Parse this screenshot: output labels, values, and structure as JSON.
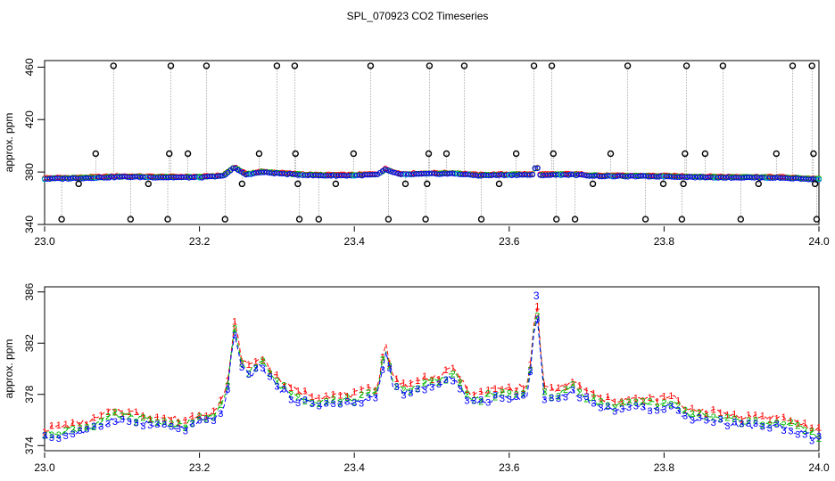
{
  "page_title": "SPL_070923  CO2 Timeseries",
  "chart_data": [
    {
      "type": "scatter",
      "name": "top-panel",
      "title": "SPL_070923  CO2 Timeseries",
      "xlabel": "",
      "ylabel": "approx. ppm",
      "xlim": [
        23.0,
        24.0
      ],
      "ylim": [
        340,
        465
      ],
      "x_ticks": [
        23.0,
        23.2,
        23.4,
        23.6,
        23.8,
        24.0
      ],
      "x_tick_labels": [
        "23.0",
        "23.2",
        "23.4",
        "23.6",
        "23.8",
        "24.0"
      ],
      "y_ticks": [
        340,
        380,
        420,
        460
      ],
      "y_tick_labels": [
        "340",
        "380",
        "420",
        "460"
      ],
      "colors": {
        "series1": "#ff0000",
        "series2": "#00bb00",
        "series3": "#0000ff",
        "series4": "#00cccc",
        "outlier": "#000000",
        "vline": "#808080"
      },
      "series": [
        {
          "name": "1",
          "color": "#ff0000",
          "marker": "circle"
        },
        {
          "name": "2",
          "color": "#00bb00",
          "marker": "circle"
        },
        {
          "name": "3",
          "color": "#0000ff",
          "marker": "circle"
        },
        {
          "name": "4",
          "color": "#00cccc",
          "marker": "circle"
        }
      ],
      "outliers": [
        {
          "x": 23.022,
          "y": 344
        },
        {
          "x": 23.044,
          "y": 371
        },
        {
          "x": 23.066,
          "y": 394
        },
        {
          "x": 23.089,
          "y": 461
        },
        {
          "x": 23.111,
          "y": 344
        },
        {
          "x": 23.134,
          "y": 371
        },
        {
          "x": 23.159,
          "y": 344
        },
        {
          "x": 23.161,
          "y": 394
        },
        {
          "x": 23.163,
          "y": 461
        },
        {
          "x": 23.185,
          "y": 394
        },
        {
          "x": 23.209,
          "y": 461
        },
        {
          "x": 23.233,
          "y": 344
        },
        {
          "x": 23.255,
          "y": 371
        },
        {
          "x": 23.277,
          "y": 394
        },
        {
          "x": 23.3,
          "y": 461
        },
        {
          "x": 23.323,
          "y": 461
        },
        {
          "x": 23.324,
          "y": 394
        },
        {
          "x": 23.327,
          "y": 371
        },
        {
          "x": 23.329,
          "y": 344
        },
        {
          "x": 23.354,
          "y": 344
        },
        {
          "x": 23.376,
          "y": 371
        },
        {
          "x": 23.399,
          "y": 394
        },
        {
          "x": 23.421,
          "y": 461
        },
        {
          "x": 23.444,
          "y": 344
        },
        {
          "x": 23.466,
          "y": 371
        },
        {
          "x": 23.492,
          "y": 344
        },
        {
          "x": 23.494,
          "y": 371
        },
        {
          "x": 23.496,
          "y": 394
        },
        {
          "x": 23.497,
          "y": 461
        },
        {
          "x": 23.519,
          "y": 394
        },
        {
          "x": 23.542,
          "y": 461
        },
        {
          "x": 23.564,
          "y": 344
        },
        {
          "x": 23.587,
          "y": 371
        },
        {
          "x": 23.609,
          "y": 394
        },
        {
          "x": 23.632,
          "y": 461
        },
        {
          "x": 23.655,
          "y": 461
        },
        {
          "x": 23.657,
          "y": 394
        },
        {
          "x": 23.661,
          "y": 344
        },
        {
          "x": 23.685,
          "y": 344
        },
        {
          "x": 23.708,
          "y": 371
        },
        {
          "x": 23.731,
          "y": 394
        },
        {
          "x": 23.753,
          "y": 461
        },
        {
          "x": 23.776,
          "y": 344
        },
        {
          "x": 23.799,
          "y": 371
        },
        {
          "x": 23.823,
          "y": 344
        },
        {
          "x": 23.825,
          "y": 371
        },
        {
          "x": 23.827,
          "y": 394
        },
        {
          "x": 23.829,
          "y": 461
        },
        {
          "x": 23.853,
          "y": 394
        },
        {
          "x": 23.876,
          "y": 461
        },
        {
          "x": 23.899,
          "y": 344
        },
        {
          "x": 23.922,
          "y": 371
        },
        {
          "x": 23.945,
          "y": 394
        },
        {
          "x": 23.966,
          "y": 461
        },
        {
          "x": 23.991,
          "y": 461
        },
        {
          "x": 23.993,
          "y": 394
        },
        {
          "x": 23.995,
          "y": 371
        },
        {
          "x": 23.997,
          "y": 344
        }
      ],
      "baseline_profile": [
        [
          23.0,
          374.8
        ],
        [
          23.05,
          375.3
        ],
        [
          23.1,
          376.3
        ],
        [
          23.15,
          375.9
        ],
        [
          23.2,
          375.9
        ],
        [
          23.23,
          376.8
        ],
        [
          23.245,
          383.2
        ],
        [
          23.26,
          378.0
        ],
        [
          23.28,
          379.8
        ],
        [
          23.32,
          378.2
        ],
        [
          23.35,
          377.3
        ],
        [
          23.4,
          377.3
        ],
        [
          23.43,
          378.0
        ],
        [
          23.44,
          381.7
        ],
        [
          23.46,
          378.0
        ],
        [
          23.5,
          378.6
        ],
        [
          23.53,
          378.7
        ],
        [
          23.56,
          377.3
        ],
        [
          23.6,
          377.8
        ],
        [
          23.63,
          377.8
        ],
        [
          23.635,
          385.0
        ],
        [
          23.64,
          377.6
        ],
        [
          23.68,
          378.0
        ],
        [
          23.72,
          376.8
        ],
        [
          23.8,
          376.6
        ],
        [
          23.85,
          376.0
        ],
        [
          23.9,
          375.8
        ],
        [
          23.95,
          375.6
        ],
        [
          23.99,
          374.5
        ]
      ]
    },
    {
      "type": "line",
      "name": "bottom-panel",
      "title": "",
      "xlabel": "",
      "ylabel": "approx. ppm",
      "xlim": [
        23.0,
        24.0
      ],
      "ylim": [
        373.6,
        386.4
      ],
      "x_ticks": [
        23.0,
        23.2,
        23.4,
        23.6,
        23.8,
        24.0
      ],
      "x_tick_labels": [
        "23.0",
        "23.2",
        "23.4",
        "23.6",
        "23.8",
        "24.0"
      ],
      "y_ticks": [
        374,
        378,
        382,
        386
      ],
      "y_tick_labels": [
        "374",
        "378",
        "382",
        "386"
      ],
      "series": [
        {
          "name": "1",
          "label": "1",
          "color": "#ff0000",
          "offset": 0.7
        },
        {
          "name": "2",
          "label": "2",
          "color": "#00bb00",
          "offset": 0.3
        },
        {
          "name": "3",
          "label": "3",
          "color": "#0000ff",
          "offset": 0.0
        }
      ],
      "annotations": [
        {
          "text": "3",
          "x": 23.635,
          "y": 385.3,
          "color": "#0000ff"
        }
      ],
      "profile": [
        [
          23.0,
          374.6
        ],
        [
          23.03,
          374.9
        ],
        [
          23.06,
          375.2
        ],
        [
          23.09,
          376.1
        ],
        [
          23.12,
          375.8
        ],
        [
          23.15,
          375.5
        ],
        [
          23.18,
          375.3
        ],
        [
          23.2,
          375.8
        ],
        [
          23.22,
          376.0
        ],
        [
          23.235,
          377.5
        ],
        [
          23.245,
          383.0
        ],
        [
          23.255,
          380.0
        ],
        [
          23.265,
          379.5
        ],
        [
          23.28,
          380.3
        ],
        [
          23.3,
          378.6
        ],
        [
          23.32,
          377.7
        ],
        [
          23.35,
          377.2
        ],
        [
          23.4,
          377.3
        ],
        [
          23.43,
          377.9
        ],
        [
          23.44,
          381.5
        ],
        [
          23.45,
          378.6
        ],
        [
          23.47,
          378.0
        ],
        [
          23.49,
          378.6
        ],
        [
          23.51,
          378.7
        ],
        [
          23.53,
          379.4
        ],
        [
          23.545,
          377.6
        ],
        [
          23.56,
          377.3
        ],
        [
          23.58,
          377.7
        ],
        [
          23.61,
          377.8
        ],
        [
          23.625,
          378.0
        ],
        [
          23.635,
          385.0
        ],
        [
          23.645,
          377.8
        ],
        [
          23.66,
          377.6
        ],
        [
          23.68,
          378.3
        ],
        [
          23.7,
          377.6
        ],
        [
          23.72,
          376.9
        ],
        [
          23.76,
          376.9
        ],
        [
          23.8,
          377.0
        ],
        [
          23.815,
          377.2
        ],
        [
          23.82,
          376.3
        ],
        [
          23.86,
          376.0
        ],
        [
          23.9,
          375.6
        ],
        [
          23.95,
          375.5
        ],
        [
          23.98,
          375.0
        ],
        [
          23.995,
          374.5
        ]
      ]
    }
  ]
}
